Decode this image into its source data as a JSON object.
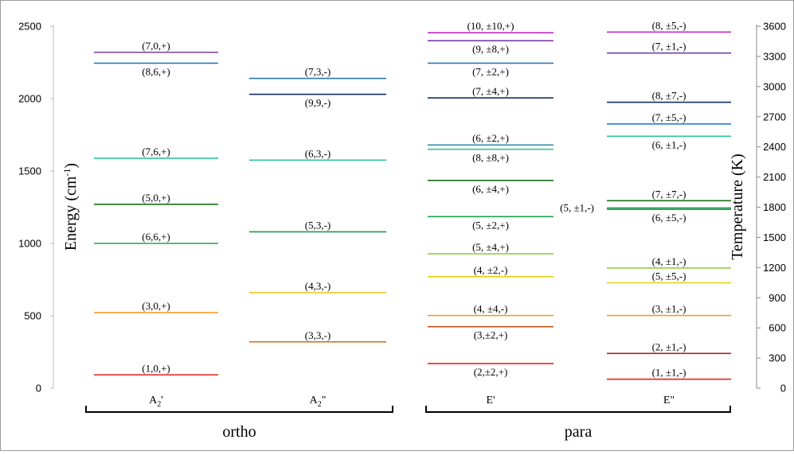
{
  "chart_data": {
    "type": "energy-level diagram",
    "left_axis": {
      "label": "Energy (cm",
      "label_sup": "-1",
      "label_close": ")",
      "range": [
        0,
        2500
      ],
      "ticks": [
        0,
        500,
        1000,
        1500,
        2000,
        2500
      ]
    },
    "right_axis": {
      "label": "Temperature (K)",
      "range": [
        0,
        3600
      ],
      "ticks": [
        0,
        300,
        600,
        900,
        1200,
        1500,
        1800,
        2100,
        2400,
        2700,
        3000,
        3300,
        3600
      ]
    },
    "groups": [
      {
        "name": "ortho",
        "columns": [
          0,
          1
        ]
      },
      {
        "name": "para",
        "columns": [
          2,
          3
        ]
      }
    ],
    "columns": [
      {
        "label": "A",
        "sub": "2",
        "sup": "'",
        "levels": [
          {
            "label": "(1,0,+)",
            "energy": 92,
            "color": "#e8211b",
            "label_pos": "above"
          },
          {
            "label": "(3,0,+)",
            "energy": 522,
            "color": "#f7941d",
            "label_pos": "above"
          },
          {
            "label": "(6,6,+)",
            "energy": 1000,
            "color": "#20a050",
            "label_pos": "above"
          },
          {
            "label": "(5,0,+)",
            "energy": 1270,
            "color": "#1a6e1a",
            "label_pos": "above"
          },
          {
            "label": "(7,6,+)",
            "energy": 1588,
            "color": "#2ec4a0",
            "label_pos": "above"
          },
          {
            "label": "(8,6,+)",
            "energy": 2245,
            "color": "#2a78b8",
            "label_pos": "below"
          },
          {
            "label": "(7,0,+)",
            "energy": 2320,
            "color": "#7a3ea0",
            "label_pos": "above"
          }
        ]
      },
      {
        "label": "A",
        "sub": "2",
        "sup": "\"",
        "levels": [
          {
            "label": "(3,3,-)",
            "energy": 320,
            "color": "#d26a1a",
            "label_pos": "above"
          },
          {
            "label": "(4,3,-)",
            "energy": 660,
            "color": "#f2c21c",
            "label_pos": "above"
          },
          {
            "label": "(5,3,-)",
            "energy": 1080,
            "color": "#1e9a50",
            "label_pos": "above"
          },
          {
            "label": "(6,3,-)",
            "energy": 1575,
            "color": "#2ec4a0",
            "label_pos": "above"
          },
          {
            "label": "(9,9,-)",
            "energy": 2030,
            "color": "#14306a",
            "label_pos": "below"
          },
          {
            "label": "(7,3,-)",
            "energy": 2140,
            "color": "#2a78b8",
            "label_pos": "above"
          }
        ]
      },
      {
        "label": "E",
        "sub": "",
        "sup": "'",
        "levels": [
          {
            "label": "(2,±2,+)",
            "energy": 170,
            "color": "#e8211b",
            "label_pos": "below"
          },
          {
            "label": "(3,±2,+)",
            "energy": 425,
            "color": "#c8541a",
            "label_pos": "below"
          },
          {
            "label": "(4, ±4,-)",
            "energy": 502,
            "color": "#f7941d",
            "label_pos": "above"
          },
          {
            "label": "(4, ±2,-)",
            "energy": 770,
            "color": "#e0d21a",
            "label_pos": "above"
          },
          {
            "label": "(5, ±4,+)",
            "energy": 928,
            "color": "#96cc4a",
            "label_pos": "above"
          },
          {
            "label": "(5, ±2,+)",
            "energy": 1185,
            "color": "#20a050",
            "label_pos": "below"
          },
          {
            "label": "(6, ±4,+)",
            "energy": 1435,
            "color": "#1a6e1a",
            "label_pos": "below"
          },
          {
            "label": "(8, ±8,+)",
            "energy": 1650,
            "color": "#2ec4a0",
            "label_pos": "below"
          },
          {
            "label": "(6, ±2,+)",
            "energy": 1680,
            "color": "#2a8aa8",
            "label_pos": "above"
          },
          {
            "label": "(7, ±4,+)",
            "energy": 2005,
            "color": "#14306a",
            "label_pos": "above"
          },
          {
            "label": "(7, ±2,+)",
            "energy": 2245,
            "color": "#2a78b8",
            "label_pos": "below"
          },
          {
            "label": "(9, ±8,+)",
            "energy": 2400,
            "color": "#7a3ea0",
            "label_pos": "below"
          },
          {
            "label": "(10, ±10,+)",
            "energy": 2455,
            "color": "#c42ac4",
            "label_pos": "above"
          }
        ]
      },
      {
        "label": "E",
        "sub": "",
        "sup": "\"",
        "levels": [
          {
            "label": "(1, ±1,-)",
            "energy": 62,
            "color": "#e8211b",
            "label_pos": "above"
          },
          {
            "label": "(2, ±1,-)",
            "energy": 240,
            "color": "#b01e28",
            "label_pos": "above"
          },
          {
            "label": "(3, ±1,-)",
            "energy": 502,
            "color": "#f7941d",
            "label_pos": "above"
          },
          {
            "label": "(5, ±5,-)",
            "energy": 728,
            "color": "#e0d21a",
            "label_pos": "above"
          },
          {
            "label": "(4, ±1,-)",
            "energy": 830,
            "color": "#96cc4a",
            "label_pos": "above"
          },
          {
            "label": "(6, ±5,-)",
            "energy": 1235,
            "color": "#20a050",
            "label_pos": "below"
          },
          {
            "label": "(5, ±1,-)",
            "energy": 1245,
            "color": "#20a050",
            "label_pos": "left"
          },
          {
            "label": "(7, ±7,-)",
            "energy": 1295,
            "color": "#1a6e1a",
            "label_pos": "above"
          },
          {
            "label": "(6, ±1,-)",
            "energy": 1740,
            "color": "#2ec4a0",
            "label_pos": "below"
          },
          {
            "label": "(7, ±5,-)",
            "energy": 1825,
            "color": "#1e7ce8",
            "label_pos": "above"
          },
          {
            "label": "(8, ±7,-)",
            "energy": 1975,
            "color": "#14306a",
            "label_pos": "above"
          },
          {
            "label": "(7, ±1,-)",
            "energy": 2315,
            "color": "#7a3ea0",
            "label_pos": "above"
          },
          {
            "label": "(8, ±5,-)",
            "energy": 2460,
            "color": "#c42ac4",
            "label_pos": "above"
          }
        ]
      }
    ]
  }
}
